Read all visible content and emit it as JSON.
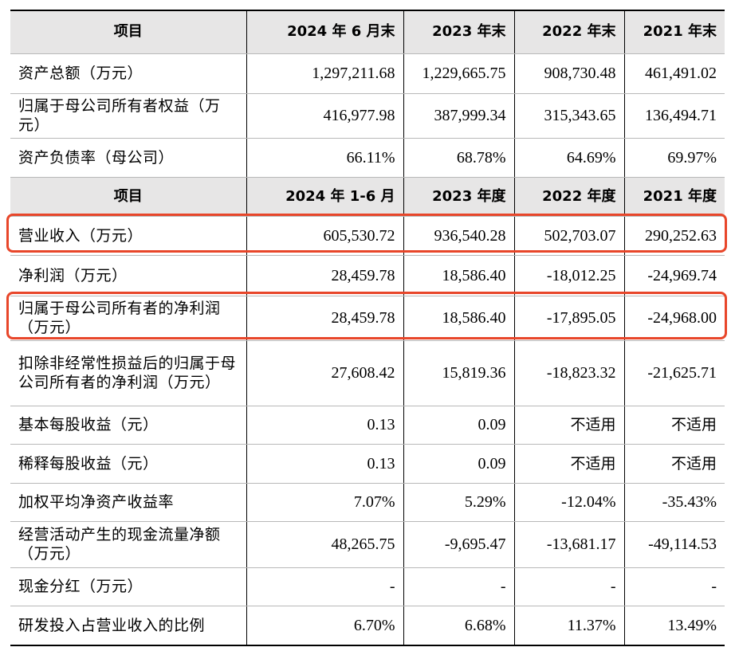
{
  "header1": {
    "item": "项目",
    "col1": "2024 年 6 月末",
    "col2": "2023 年末",
    "col3": "2022 年末",
    "col4": "2021 年末"
  },
  "balance_rows": [
    {
      "label": "资产总额（万元）",
      "values": [
        "1,297,211.68",
        "1,229,665.75",
        "908,730.48",
        "461,491.02"
      ]
    },
    {
      "label": "归属于母公司所有者权益（万元）",
      "values": [
        "416,977.98",
        "387,999.34",
        "315,343.65",
        "136,494.71"
      ]
    },
    {
      "label": "资产负债率（母公司）",
      "values": [
        "66.11%",
        "68.78%",
        "64.69%",
        "69.97%"
      ]
    }
  ],
  "header2": {
    "item": "项目",
    "col1": "2024 年 1-6 月",
    "col2": "2023 年度",
    "col3": "2022 年度",
    "col4": "2021 年度"
  },
  "income_rows": [
    {
      "label": "营业收入（万元）",
      "values": [
        "605,530.72",
        "936,540.28",
        "502,703.07",
        "290,252.63"
      ]
    },
    {
      "label": "净利润（万元）",
      "values": [
        "28,459.78",
        "18,586.40",
        "-18,012.25",
        "-24,969.74"
      ]
    },
    {
      "label": "归属于母公司所有者的净利润（万元）",
      "values": [
        "28,459.78",
        "18,586.40",
        "-17,895.05",
        "-24,968.00"
      ]
    },
    {
      "label": "扣除非经常性损益后的归属于母公司所有者的净利润（万元）",
      "values": [
        "27,608.42",
        "15,819.36",
        "-18,823.32",
        "-21,625.71"
      ]
    },
    {
      "label": "基本每股收益（元）",
      "values": [
        "0.13",
        "0.09",
        "不适用",
        "不适用"
      ]
    },
    {
      "label": "稀释每股收益（元）",
      "values": [
        "0.13",
        "0.09",
        "不适用",
        "不适用"
      ]
    },
    {
      "label": "加权平均净资产收益率",
      "values": [
        "7.07%",
        "5.29%",
        "-12.04%",
        "-35.43%"
      ]
    },
    {
      "label": "经营活动产生的现金流量净额（万元）",
      "values": [
        "48,265.75",
        "-9,695.47",
        "-13,681.17",
        "-49,114.53"
      ]
    },
    {
      "label": "现金分红（万元）",
      "values": [
        "-",
        "-",
        "-",
        "-"
      ]
    },
    {
      "label": "研发投入占营业收入的比例",
      "values": [
        "6.70%",
        "6.68%",
        "11.37%",
        "13.49%"
      ]
    }
  ],
  "highlight_color": "#e8462a",
  "header_bg": "#e7e6e6"
}
